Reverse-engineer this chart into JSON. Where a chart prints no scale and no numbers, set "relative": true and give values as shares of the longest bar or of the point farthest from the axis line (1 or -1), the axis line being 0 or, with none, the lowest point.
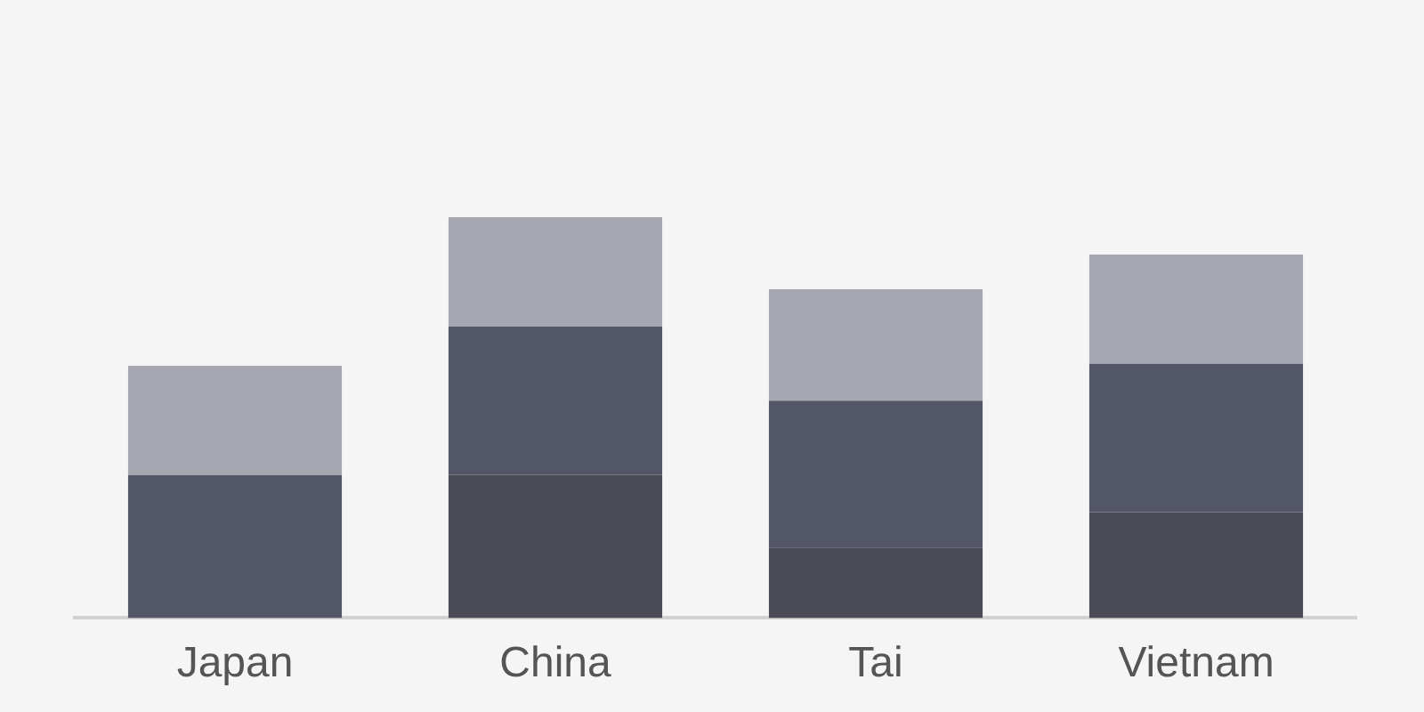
{
  "chart_data": {
    "type": "bar",
    "stacked": true,
    "relative": true,
    "grid": false,
    "legend": false,
    "categories": [
      "Japan",
      "China",
      "Tai",
      "Vietnam"
    ],
    "series": [
      {
        "color": "#4a4b56",
        "values": [
          0,
          0.357,
          0.176,
          0.264
        ]
      },
      {
        "color": "#535667",
        "values": [
          0.356,
          0.37,
          0.366,
          0.37
        ]
      },
      {
        "color": "#a6a7b0",
        "values": [
          0.273,
          0.273,
          0.278,
          0.273
        ]
      }
    ]
  }
}
